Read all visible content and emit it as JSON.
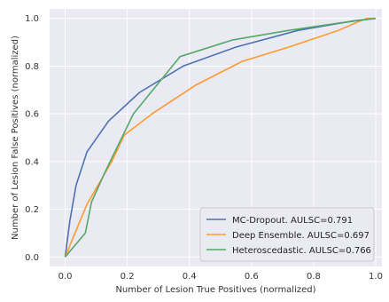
{
  "chart_data": {
    "type": "line",
    "title": "",
    "xlabel": "Number of Lesion True Positives (normalized)",
    "ylabel": "Number of Lesion False Positives (normalized)",
    "xlim": [
      -0.05,
      1.02
    ],
    "ylim": [
      -0.04,
      1.04
    ],
    "xticks": [
      0.0,
      0.2,
      0.4,
      0.6,
      0.8,
      1.0
    ],
    "xtick_labels": [
      "0.0",
      "0.2",
      "0.4",
      "0.6",
      "0.8",
      "1.0"
    ],
    "yticks": [
      0.0,
      0.2,
      0.4,
      0.6,
      0.8,
      1.0
    ],
    "ytick_labels": [
      "0.0",
      "0.2",
      "0.4",
      "0.6",
      "0.8",
      "1.0"
    ],
    "grid": true,
    "legend_position": "bottom-right",
    "background": "#eaeaf2",
    "series": [
      {
        "name": "MC-Dropout. AULSC=0.791",
        "color": "#4c72b0",
        "x": [
          0.0,
          0.015,
          0.035,
          0.07,
          0.14,
          0.24,
          0.38,
          0.55,
          0.75,
          0.93,
          1.0
        ],
        "y": [
          0.0,
          0.15,
          0.3,
          0.44,
          0.57,
          0.69,
          0.8,
          0.88,
          0.95,
          0.99,
          1.0
        ]
      },
      {
        "name": "Deep Ensemble. AULSC=0.697",
        "color": "#ff9933",
        "x": [
          0.0,
          0.07,
          0.15,
          0.19,
          0.28,
          0.42,
          0.57,
          0.72,
          0.88,
          0.97,
          1.0
        ],
        "y": [
          0.0,
          0.22,
          0.4,
          0.51,
          0.6,
          0.72,
          0.82,
          0.88,
          0.95,
          1.0,
          1.0
        ]
      },
      {
        "name": "Heteroscedastic. AULSC=0.766",
        "color": "#55a868",
        "x": [
          0.0,
          0.065,
          0.085,
          0.13,
          0.22,
          0.37,
          0.54,
          0.72,
          0.88,
          1.0
        ],
        "y": [
          0.0,
          0.1,
          0.23,
          0.36,
          0.6,
          0.84,
          0.91,
          0.95,
          0.98,
          1.0
        ]
      }
    ]
  }
}
